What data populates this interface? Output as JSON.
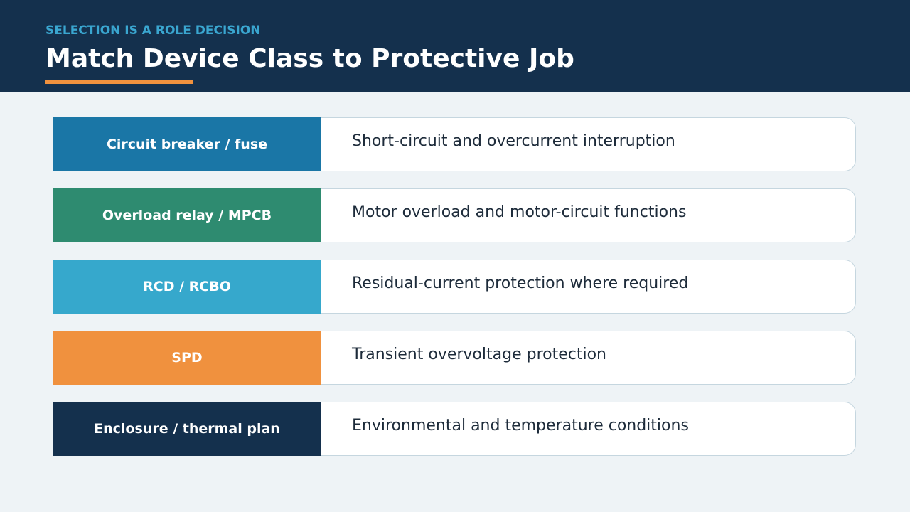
{
  "header": {
    "eyebrow": "SELECTION IS A ROLE DECISION",
    "title": "Match Device Class to Protective Job"
  },
  "rows": [
    {
      "label": "Circuit breaker / fuse",
      "description": "Short-circuit and overcurrent interruption"
    },
    {
      "label": "Overload relay / MPCB",
      "description": "Motor overload and motor-circuit functions"
    },
    {
      "label": "RCD / RCBO",
      "description": "Residual-current protection where required"
    },
    {
      "label": "SPD",
      "description": "Transient overvoltage protection"
    },
    {
      "label": "Enclosure / thermal plan",
      "description": "Environmental and temperature conditions"
    }
  ]
}
